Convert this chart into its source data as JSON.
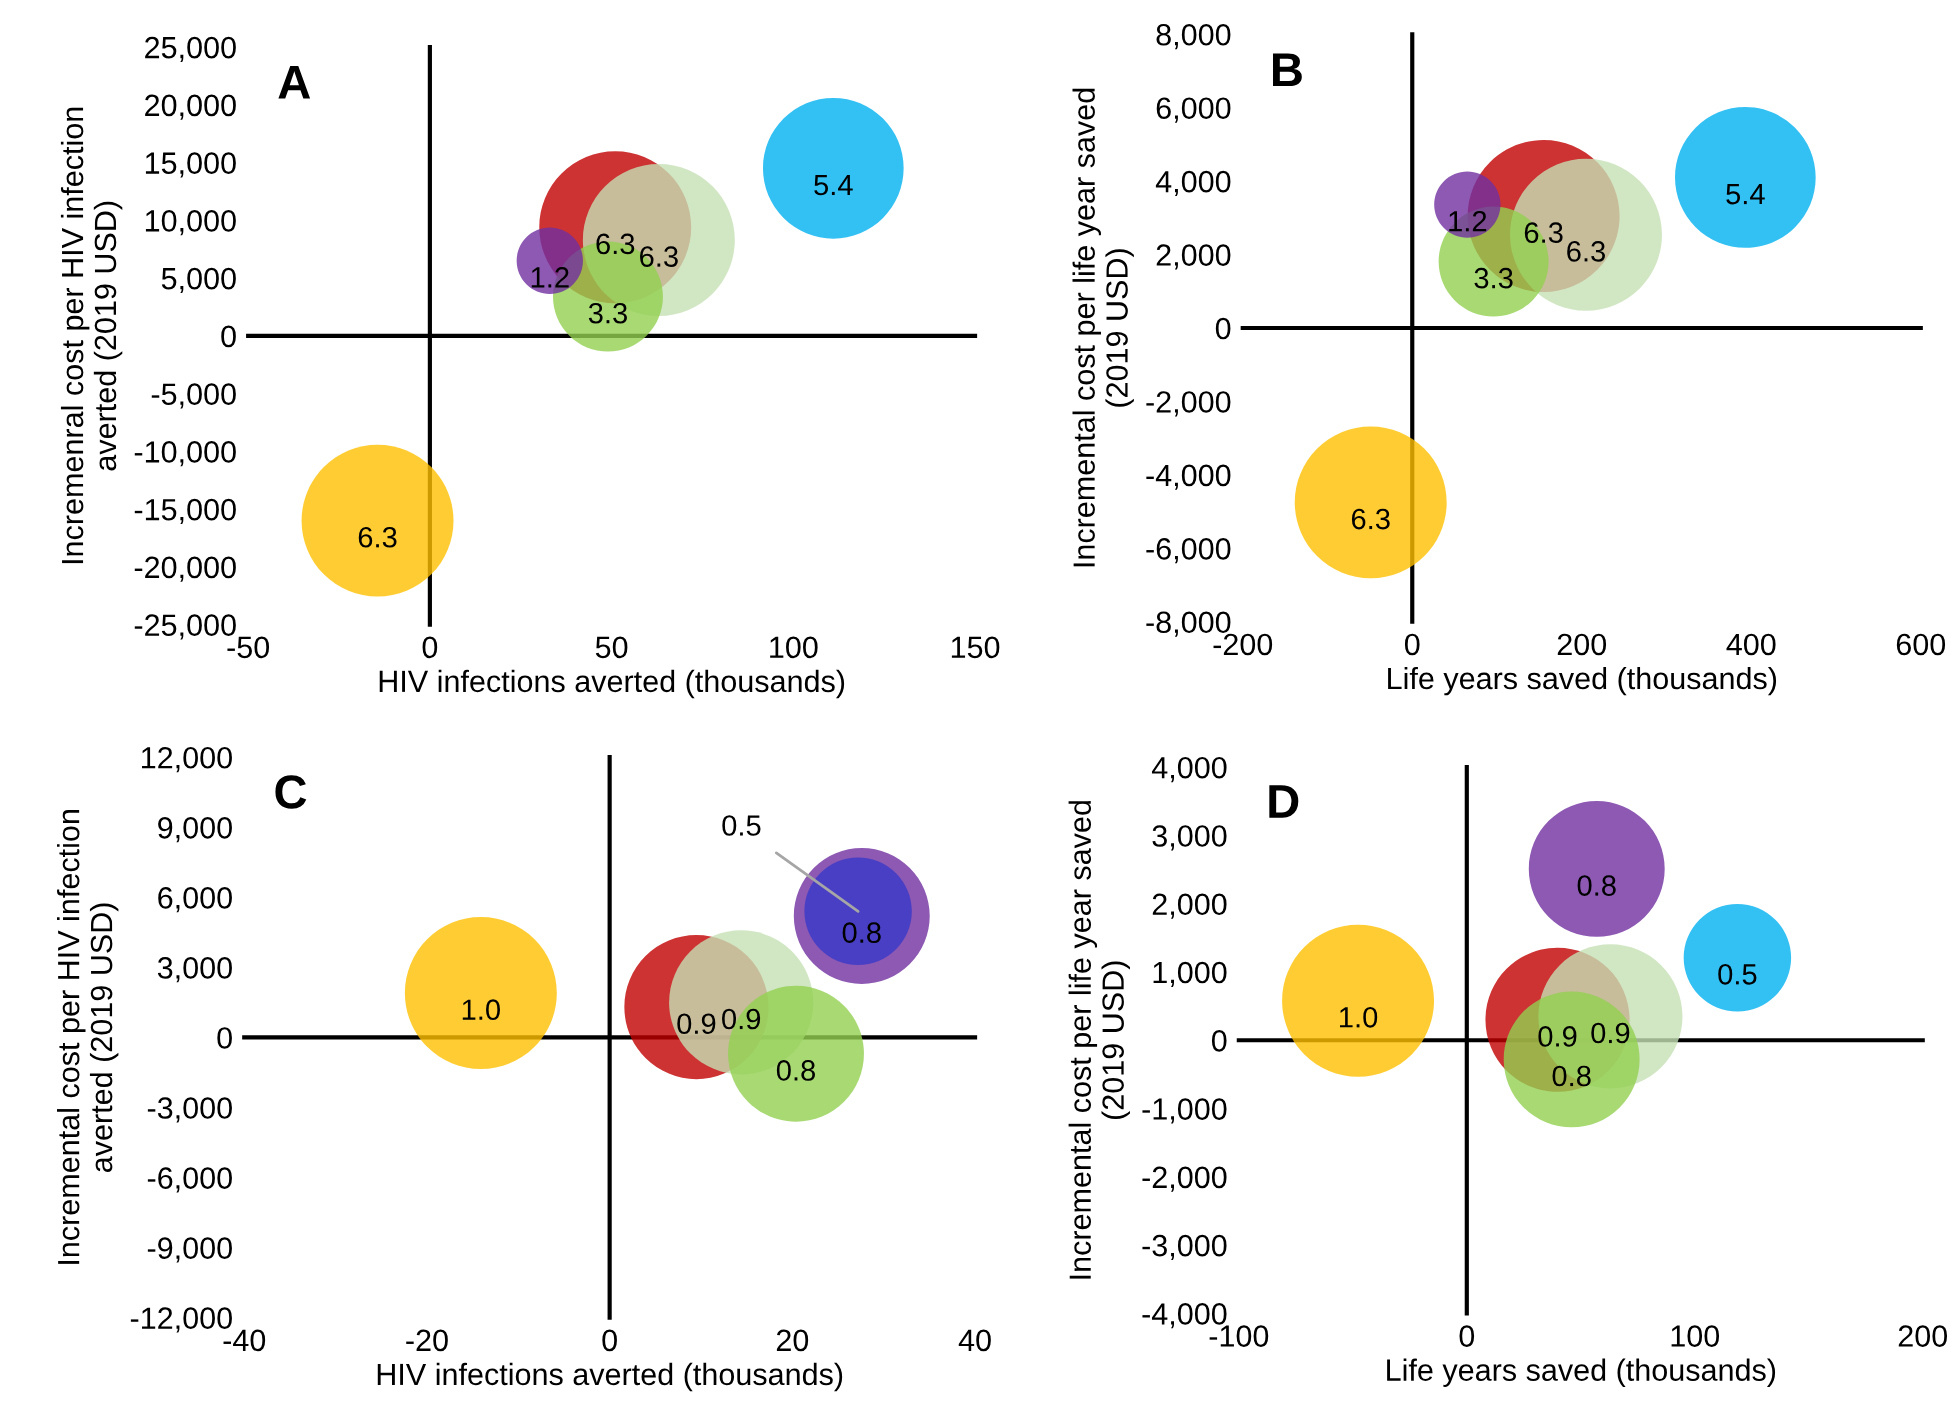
{
  "chart_data": [
    {
      "type": "bubble",
      "title": "A",
      "xlabel": "HIV infections averted (thousands)",
      "ylabel": "Incremenral cost per HIV infection\naverted (2019 USD)",
      "xlim": [
        -50,
        150
      ],
      "xticks": [
        -50,
        0,
        50,
        100,
        150
      ],
      "ylim": [
        -25000,
        25000
      ],
      "yticks": [
        {
          "value": -25000,
          "label": "-25,000"
        },
        {
          "value": -20000,
          "label": "-20,000"
        },
        {
          "value": -15000,
          "label": "-15,000"
        },
        {
          "value": -10000,
          "label": "-10,000"
        },
        {
          "value": -5000,
          "label": "-5,000"
        },
        0,
        {
          "value": 5000,
          "label": "5,000"
        },
        {
          "value": 10000,
          "label": "10,000"
        },
        {
          "value": 15000,
          "label": "15,000"
        },
        {
          "value": 20000,
          "label": "20,000"
        },
        {
          "value": 25000,
          "label": "25,000"
        }
      ],
      "series": [
        {
          "x": [
            -14.4,
            51,
            63,
            49,
            33,
            111
          ],
          "values": [
            -16000,
            9400,
            8300,
            3400,
            6500,
            14500
          ],
          "sizes": [
            6.3,
            6.3,
            6.3,
            3.3,
            1.2,
            5.4
          ],
          "colors": [
            "#ffc000",
            "#c00000",
            "#c5e0b4",
            "#92d050",
            "#7030a0",
            "#00b0f0"
          ],
          "value_labels": [
            "6.3",
            "6.3",
            "6.3",
            "3.3",
            "1.2",
            "5.4"
          ]
        }
      ]
    },
    {
      "type": "bubble",
      "title": "B",
      "xlabel": "Life years saved (thousands)",
      "ylabel": "Incremental cost per life year saved\n(2019 USD)",
      "xlim": [
        -200,
        600
      ],
      "xticks": [
        -200,
        0,
        200,
        400,
        600
      ],
      "ylim": [
        -8000,
        8000
      ],
      "yticks": [
        {
          "value": -8000,
          "label": "-8,000"
        },
        {
          "value": -6000,
          "label": "-6,000"
        },
        {
          "value": -4000,
          "label": "-4,000"
        },
        {
          "value": -2000,
          "label": "-2,000"
        },
        0,
        {
          "value": 2000,
          "label": "2,000"
        },
        {
          "value": 4000,
          "label": "4,000"
        },
        {
          "value": 6000,
          "label": "6,000"
        },
        {
          "value": 8000,
          "label": "8,000"
        }
      ],
      "series": [
        {
          "x": [
            -49,
            155,
            205,
            96,
            65,
            393
          ],
          "values": [
            -4750,
            3050,
            2540,
            1810,
            3360,
            4100
          ],
          "sizes": [
            6.3,
            6.3,
            6.3,
            3.3,
            1.2,
            5.4
          ],
          "colors": [
            "#ffc000",
            "#c00000",
            "#c5e0b4",
            "#92d050",
            "#7030a0",
            "#00b0f0"
          ],
          "value_labels": [
            "6.3",
            "6.3",
            "6.3",
            "3.3",
            "1.2",
            "5.4"
          ]
        }
      ]
    },
    {
      "type": "bubble",
      "title": "C",
      "xlabel": "HIV infections averted (thousands)",
      "ylabel": "Incremental cost per HIV infection\naverted (2019 USD)",
      "xlim": [
        -40,
        40
      ],
      "xticks": [
        -40,
        -20,
        0,
        20,
        40
      ],
      "ylim": [
        -12000,
        12000
      ],
      "yticks": [
        {
          "value": -12000,
          "label": "-12,000"
        },
        {
          "value": -9000,
          "label": "-9,000"
        },
        {
          "value": -6000,
          "label": "-6,000"
        },
        {
          "value": -3000,
          "label": "-3,000"
        },
        0,
        {
          "value": 3000,
          "label": "3,000"
        },
        {
          "value": 6000,
          "label": "6,000"
        },
        {
          "value": 9000,
          "label": "9,000"
        },
        {
          "value": 12000,
          "label": "12,000"
        }
      ],
      "annotations": [
        {
          "text": "0.5",
          "x": 27.2,
          "y": 5400
        }
      ],
      "series": [
        {
          "x": [
            -14.1,
            9.5,
            14.4,
            20.4,
            27.6,
            27.2
          ],
          "values": [
            1900,
            1300,
            1500,
            -700,
            5200,
            5400
          ],
          "sizes": [
            1.0,
            0.9,
            0.9,
            0.8,
            0.8,
            0.5
          ],
          "colors": [
            "#ffc000",
            "#c00000",
            "#c5e0b4",
            "#92d050",
            "#7030a0",
            "#3838c8"
          ],
          "value_labels": [
            "1.0",
            "0.9",
            "0.9",
            "0.8",
            "0.8",
            null
          ]
        }
      ]
    },
    {
      "type": "bubble",
      "title": "D",
      "xlabel": "Life years saved (thousands)",
      "ylabel": "Incremental cost per life year saved\n(2019 USD)",
      "xlim": [
        -100,
        200
      ],
      "xticks": [
        -100,
        0,
        100,
        200
      ],
      "ylim": [
        -4000,
        4000
      ],
      "yticks": [
        {
          "value": -4000,
          "label": "-4,000"
        },
        {
          "value": -3000,
          "label": "-3,000"
        },
        {
          "value": -2000,
          "label": "-2,000"
        },
        {
          "value": -1000,
          "label": "-1,000"
        },
        0,
        {
          "value": 1000,
          "label": "1,000"
        },
        {
          "value": 2000,
          "label": "2,000"
        },
        {
          "value": 3000,
          "label": "3,000"
        },
        {
          "value": 4000,
          "label": "4,000"
        }
      ],
      "series": [
        {
          "x": [
            -47.7,
            39.8,
            63,
            46,
            57,
            118.7
          ],
          "values": [
            580,
            300,
            350,
            -280,
            2510,
            1210
          ],
          "sizes": [
            1.0,
            0.9,
            0.9,
            0.8,
            0.8,
            0.5
          ],
          "colors": [
            "#ffc000",
            "#c00000",
            "#c5e0b4",
            "#92d050",
            "#7030a0",
            "#00b0f0"
          ],
          "value_labels": [
            "1.0",
            "0.9",
            "0.9",
            "0.8",
            "0.8",
            "0.5"
          ]
        }
      ]
    }
  ]
}
